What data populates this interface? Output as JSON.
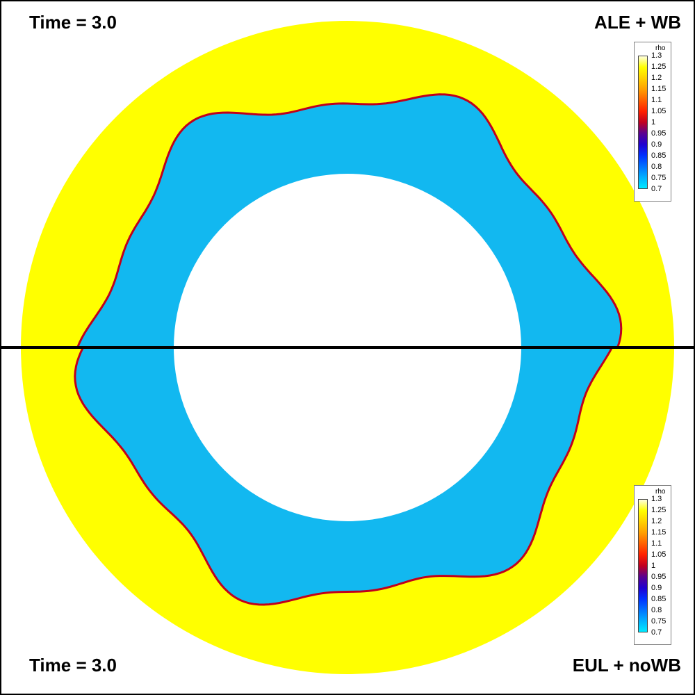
{
  "labels": {
    "top_left": "Time = 3.0",
    "top_right": "ALE + WB",
    "bottom_left": "Time = 3.0",
    "bottom_right": "EUL + noWB"
  },
  "legend": {
    "title": "rho",
    "ticks": [
      "1.3",
      "1.25",
      "1.2",
      "1.15",
      "1.1",
      "1.05",
      "1",
      "0.95",
      "0.9",
      "0.85",
      "0.8",
      "0.75",
      "0.7"
    ]
  },
  "colors": {
    "outer_fluid": "#ffff00",
    "inner_fluid": "#12b8f0",
    "interface": "#c0001c",
    "interface_edge": "#1a2fd0",
    "background": "#ffffff",
    "divider": "#000000"
  },
  "chart_data": {
    "type": "heatmap",
    "variable": "rho",
    "colorbar_range": [
      0.7,
      1.3
    ],
    "colorbar_ticks": [
      1.3,
      1.25,
      1.2,
      1.15,
      1.1,
      1.05,
      1.0,
      0.95,
      0.9,
      0.85,
      0.8,
      0.75,
      0.7
    ],
    "colorbar_colors": [
      "#ffffe0",
      "#ffff00",
      "#ffd000",
      "#ff9f00",
      "#ff6000",
      "#ff2000",
      "#c00020",
      "#5a0090",
      "#2000d0",
      "#0030ff",
      "#0070ff",
      "#00b0ff",
      "#00eaff"
    ],
    "panels": [
      {
        "half": "top",
        "time": 3.0,
        "method": "ALE + WB"
      },
      {
        "half": "bottom",
        "time": 3.0,
        "method": "EUL + noWB"
      }
    ],
    "outer_density": 1.3,
    "inner_density": 0.7,
    "interface_perturbation_mode": 6
  }
}
